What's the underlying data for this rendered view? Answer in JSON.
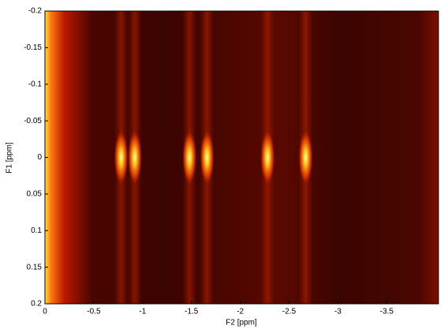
{
  "chart_data": {
    "type": "heatmap",
    "x_label": "F2 [ppm]",
    "y_label": "F1 [ppm]",
    "xlim": [
      0,
      -4.03
    ],
    "ylim": [
      -0.2,
      0.2
    ],
    "xticks": [
      0,
      -0.5,
      -1,
      -1.5,
      -2,
      -2.5,
      -3,
      -3.5
    ],
    "yticks": [
      -0.2,
      -0.15,
      -0.1,
      -0.05,
      0,
      0.05,
      0.1,
      0.15,
      0.2
    ],
    "peaks": {
      "x": [
        -0.78,
        -0.92,
        -1.48,
        -1.66,
        -2.28,
        -2.67
      ],
      "y": [
        0,
        0,
        0,
        0,
        0,
        0
      ]
    }
  }
}
